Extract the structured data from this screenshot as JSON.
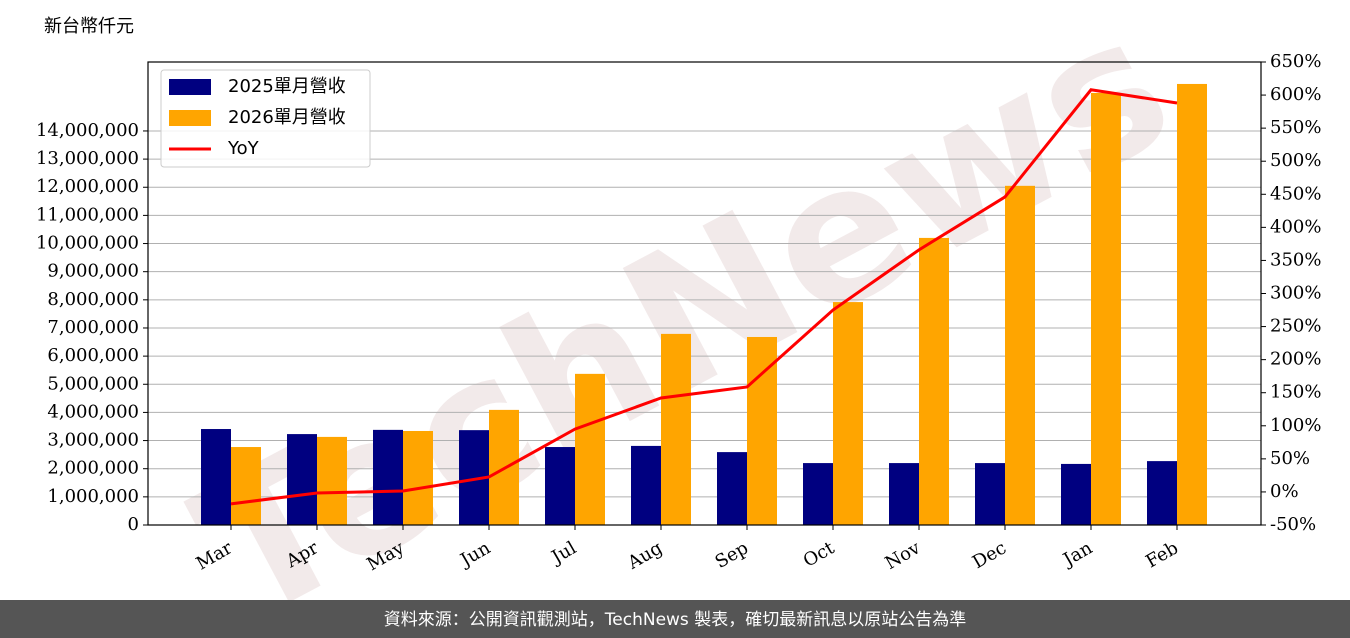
{
  "chart_data": {
    "type": "bar",
    "y_label": "新台幣仟元",
    "watermark": "TechNews",
    "footer": "資料來源：公開資訊觀測站，TechNews 製表，確切最新訊息以原站公告為準",
    "categories": [
      "Mar",
      "Apr",
      "May",
      "Jun",
      "Jul",
      "Aug",
      "Sep",
      "Oct",
      "Nov",
      "Dec",
      "Jan",
      "Feb"
    ],
    "series": [
      {
        "name": "2025單月營收",
        "color": "#000080",
        "values": [
          3410000,
          3230000,
          3380000,
          3370000,
          2770000,
          2810000,
          2590000,
          2200000,
          2200000,
          2200000,
          2170000,
          2270000
        ]
      },
      {
        "name": "2026單月營收",
        "color": "#ffa500",
        "values": [
          2770000,
          3130000,
          3340000,
          4090000,
          5370000,
          6790000,
          6680000,
          7920000,
          10200000,
          12050000,
          15350000,
          15670000
        ]
      },
      {
        "name": "YoY",
        "type": "line",
        "axis": "y2",
        "color": "#ff0000",
        "values": [
          -18,
          -1.6,
          1.4,
          22.6,
          95,
          142,
          158.7,
          275,
          366,
          446,
          608,
          588
        ]
      }
    ],
    "ylim": [
      0,
      16450000
    ],
    "yticks": [
      0,
      {
        "value": 1000000,
        "label": "1,000,000"
      },
      {
        "value": 2000000,
        "label": "2,000,000"
      },
      {
        "value": 3000000,
        "label": "3,000,000"
      },
      {
        "value": 4000000,
        "label": "4,000,000"
      },
      {
        "value": 5000000,
        "label": "5,000,000"
      },
      {
        "value": 6000000,
        "label": "6,000,000"
      },
      {
        "value": 7000000,
        "label": "7,000,000"
      },
      {
        "value": 8000000,
        "label": "8,000,000"
      },
      {
        "value": 9000000,
        "label": "9,000,000"
      },
      {
        "value": 10000000,
        "label": "10,000,000"
      },
      {
        "value": 11000000,
        "label": "11,000,000"
      },
      {
        "value": 12000000,
        "label": "12,000,000"
      },
      {
        "value": 13000000,
        "label": "13,000,000"
      },
      {
        "value": 14000000,
        "label": "14,000,000"
      }
    ],
    "y2lim": [
      -50,
      650
    ],
    "y2ticks": [
      {
        "value": -50,
        "label": "-50%"
      },
      {
        "value": 0,
        "label": "0%"
      },
      {
        "value": 50,
        "label": "50%"
      },
      {
        "value": 100,
        "label": "100%"
      },
      {
        "value": 150,
        "label": "150%"
      },
      {
        "value": 200,
        "label": "200%"
      },
      {
        "value": 250,
        "label": "250%"
      },
      {
        "value": 300,
        "label": "300%"
      },
      {
        "value": 350,
        "label": "350%"
      },
      {
        "value": 400,
        "label": "400%"
      },
      {
        "value": 450,
        "label": "450%"
      },
      {
        "value": 500,
        "label": "500%"
      },
      {
        "value": 550,
        "label": "550%"
      },
      {
        "value": 600,
        "label": "600%"
      },
      {
        "value": 650,
        "label": "650%"
      }
    ],
    "grid": true,
    "legend": "upper left"
  }
}
